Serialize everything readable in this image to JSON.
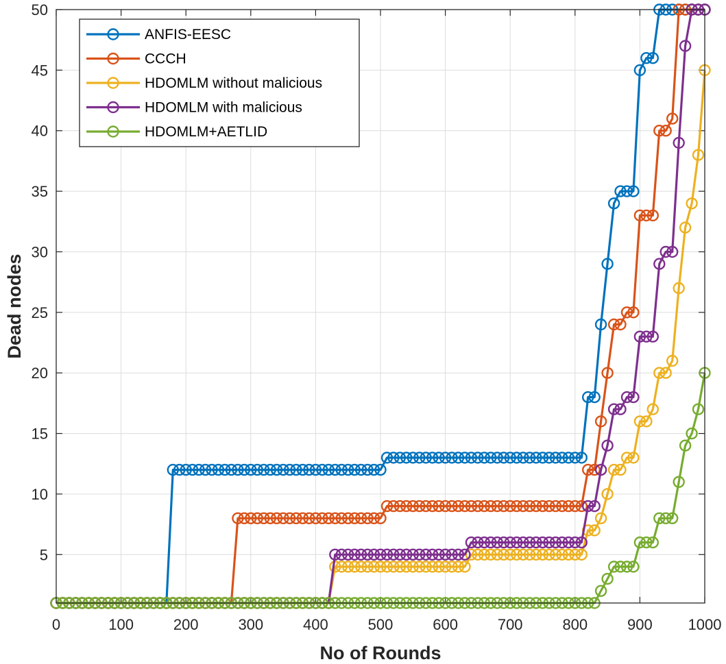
{
  "chart_data": {
    "type": "line",
    "title": "",
    "xlabel": "No of Rounds",
    "ylabel": "Dead nodes",
    "xlim": [
      0,
      1000
    ],
    "ylim": [
      1,
      50
    ],
    "xticks": [
      "0",
      "100",
      "200",
      "300",
      "400",
      "500",
      "600",
      "700",
      "800",
      "900",
      "1000"
    ],
    "yticks": [
      "5",
      "10",
      "15",
      "20",
      "25",
      "30",
      "35",
      "40",
      "45",
      "50"
    ],
    "grid": true,
    "legend_position": "top-left",
    "series": [
      {
        "name": "ANFIS-EESC",
        "color": "#0072BD",
        "x": [
          0,
          170,
          180,
          500,
          510,
          810,
          820,
          830,
          840,
          850,
          860,
          870,
          880,
          890,
          900,
          910,
          920,
          930,
          1000
        ],
        "y": [
          1,
          1,
          12,
          12,
          13,
          13,
          18,
          18,
          24,
          29,
          34,
          35,
          35,
          35,
          45,
          46,
          46,
          50,
          50
        ]
      },
      {
        "name": "CCCH",
        "color": "#D95319",
        "x": [
          0,
          270,
          280,
          500,
          510,
          810,
          820,
          830,
          840,
          850,
          860,
          870,
          880,
          890,
          900,
          910,
          920,
          930,
          940,
          950,
          960,
          1000
        ],
        "y": [
          1,
          1,
          8,
          8,
          9,
          9,
          12,
          12,
          16,
          20,
          24,
          24,
          25,
          25,
          33,
          33,
          33,
          40,
          40,
          41,
          50,
          50
        ]
      },
      {
        "name": "HDOMLM without malicious",
        "color": "#EDB120",
        "x": [
          0,
          420,
          430,
          570,
          580,
          630,
          640,
          810,
          820,
          830,
          840,
          850,
          860,
          870,
          880,
          890,
          900,
          910,
          920,
          930,
          940,
          950,
          960,
          970,
          980,
          990,
          1000
        ],
        "y": [
          1,
          1,
          4,
          4,
          4,
          4,
          5,
          5,
          7,
          7,
          8,
          10,
          12,
          12,
          13,
          13,
          16,
          16,
          17,
          20,
          20,
          21,
          27,
          32,
          34,
          38,
          45
        ]
      },
      {
        "name": "HDOMLM with malicious",
        "color": "#7E2F8E",
        "x": [
          0,
          420,
          430,
          630,
          640,
          810,
          820,
          830,
          840,
          850,
          860,
          870,
          880,
          890,
          900,
          910,
          920,
          930,
          940,
          950,
          960,
          970,
          980,
          990,
          1000
        ],
        "y": [
          1,
          1,
          5,
          5,
          6,
          6,
          9,
          9,
          12,
          14,
          17,
          17,
          18,
          18,
          23,
          23,
          23,
          29,
          30,
          30,
          39,
          47,
          50,
          50,
          50
        ]
      },
      {
        "name": "HDOMLM+AETLID",
        "color": "#77AC30",
        "x": [
          0,
          830,
          840,
          850,
          860,
          870,
          880,
          890,
          900,
          910,
          920,
          930,
          940,
          950,
          960,
          970,
          980,
          990,
          1000
        ],
        "y": [
          1,
          1,
          2,
          3,
          4,
          4,
          4,
          4,
          6,
          6,
          6,
          8,
          8,
          8,
          11,
          14,
          15,
          17,
          20
        ]
      }
    ]
  }
}
